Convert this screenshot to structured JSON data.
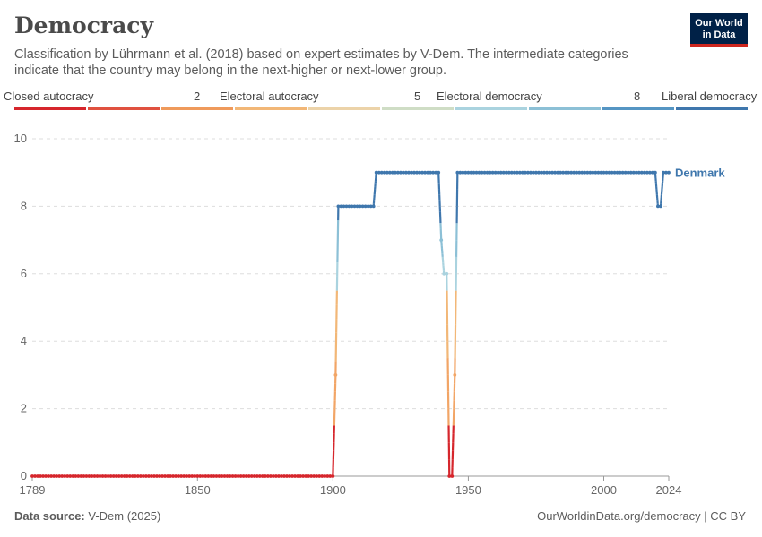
{
  "header": {
    "title": "Democracy",
    "subtitle": "Classification by Lührmann et al. (2018) based on expert estimates by V-Dem. The intermediate categories indicate that the country may belong in the next-higher or next-lower group.",
    "logo_line1": "Our World",
    "logo_line2": "in Data"
  },
  "legend": {
    "labels": [
      "Closed autocracy",
      "2",
      "Electoral autocracy",
      "5",
      "Electoral democracy",
      "8",
      "Liberal democracy"
    ],
    "colors": [
      "#d6262c",
      "#e0513f",
      "#ef9a5b",
      "#f2b777",
      "#ecd3a9",
      "#cfddc5",
      "#aad3df",
      "#8cc0d6",
      "#5595c3",
      "#3f77ad"
    ]
  },
  "footer": {
    "source_label": "Data source:",
    "source_value": "V-Dem (2025)",
    "url": "OurWorldinData.org/democracy | CC BY"
  },
  "chart_data": {
    "type": "line",
    "title": "Democracy",
    "series": [
      {
        "name": "Denmark",
        "color": "#3f77ad",
        "points": [
          [
            1789,
            0
          ],
          [
            1900,
            0
          ],
          [
            1901,
            3
          ],
          [
            1902,
            8
          ],
          [
            1915,
            8
          ],
          [
            1916,
            9
          ],
          [
            1939,
            9
          ],
          [
            1940,
            7
          ],
          [
            1941,
            6
          ],
          [
            1942,
            6
          ],
          [
            1943,
            0
          ],
          [
            1944,
            0
          ],
          [
            1945,
            3
          ],
          [
            1946,
            9
          ],
          [
            2019,
            9
          ],
          [
            2020,
            8
          ],
          [
            2021,
            8
          ],
          [
            2022,
            9
          ],
          [
            2024,
            9
          ]
        ]
      }
    ],
    "x_ticks": [
      1789,
      1850,
      1900,
      1950,
      2000,
      2024
    ],
    "y_ticks": [
      0,
      2,
      4,
      6,
      8,
      10
    ],
    "xlim": [
      1789,
      2024
    ],
    "ylim": [
      0,
      10
    ],
    "grid": "horizontal dashed"
  }
}
